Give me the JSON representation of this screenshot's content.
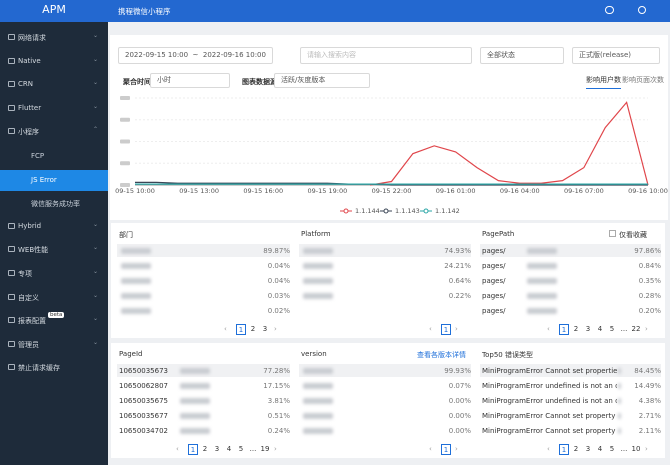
{
  "header": {
    "logo": "APM",
    "app": "携程微信小程序"
  },
  "sidebar": {
    "menu": [
      {
        "label": "网络请求"
      },
      {
        "label": "Native"
      },
      {
        "label": "CRN"
      },
      {
        "label": "Flutter"
      },
      {
        "label": "小程序",
        "children": [
          "FCP",
          "JS Error",
          "微信服务成功率"
        ]
      },
      {
        "label": "Hybrid"
      },
      {
        "label": "WEB性能"
      },
      {
        "label": "专项"
      },
      {
        "label": "自定义"
      },
      {
        "label": "报表配置",
        "badge": "beta"
      },
      {
        "label": "管理员"
      },
      {
        "label": "禁止请求缓存"
      }
    ],
    "active": "JS Error"
  },
  "filters": {
    "start": "2022-09-15 10:00",
    "sep": "~",
    "end": "2022-09-16 10:00",
    "search_placeholder": "请输入搜索内容",
    "status": "全部状态",
    "release": "正式版(release)",
    "agg_label": "聚合时间",
    "agg": "小时",
    "source_label": "图表数据源",
    "source": "活跃/灰度版本",
    "tabs": [
      "影响用户数",
      "影响页面次数"
    ]
  },
  "chart": {
    "type": "line",
    "categories": [
      "09-15 10:00",
      null,
      null,
      "09-15 13:00",
      null,
      null,
      "09-15 16:00",
      null,
      null,
      "09-15 19:00",
      null,
      null,
      "09-15 22:00",
      null,
      null,
      "09-16 01:00",
      null,
      null,
      "09-16 04:00",
      null,
      null,
      "09-16 07:00",
      null,
      null,
      "09-16 10:00"
    ],
    "ylim": [
      0,
      100
    ],
    "series": [
      {
        "name": "1.1.144",
        "color": "#e0464b",
        "values": [
          null,
          null,
          null,
          null,
          null,
          null,
          null,
          null,
          null,
          null,
          null,
          0,
          4,
          36,
          45,
          38,
          20,
          5,
          2,
          2,
          5,
          20,
          66,
          95,
          0
        ]
      },
      {
        "name": "1.1.143",
        "color": "#3b4656",
        "values": [
          3,
          3,
          2,
          2,
          2,
          2,
          2,
          2,
          2,
          2,
          1,
          1,
          0,
          0,
          0,
          0,
          0,
          0,
          0,
          0,
          0,
          0,
          0,
          0,
          0
        ]
      },
      {
        "name": "1.1.142",
        "color": "#2aa6a6",
        "values": [
          1,
          1,
          1,
          1,
          1,
          1,
          1,
          1,
          1,
          1,
          1,
          1,
          1,
          1,
          1,
          1,
          1,
          1,
          1,
          1,
          1,
          1,
          1,
          1,
          1
        ]
      }
    ]
  },
  "panels": [
    {
      "title": "部门",
      "rows": [
        {
          "value": "89.87%"
        },
        {
          "value": "0.04%"
        },
        {
          "value": "0.04%"
        },
        {
          "value": "0.03%"
        },
        {
          "value": "0.02%"
        }
      ],
      "pages": [
        "1",
        "2",
        "3"
      ]
    },
    {
      "title": "Platform",
      "rows": [
        {
          "value": "74.93%"
        },
        {
          "value": "24.21%"
        },
        {
          "value": "0.64%"
        },
        {
          "value": "0.22%"
        }
      ],
      "pages": [
        "1"
      ]
    },
    {
      "title": "PagePath",
      "extra": "仅看收藏",
      "rows": [
        {
          "label": "pages/",
          "value": "97.86%"
        },
        {
          "label": "pages/",
          "value": "0.84%"
        },
        {
          "label": "pages/",
          "value": "0.35%"
        },
        {
          "label": "pages/",
          "value": "0.28%"
        },
        {
          "label": "pages/",
          "value": "0.20%"
        }
      ],
      "pages": [
        "1",
        "2",
        "3",
        "4",
        "5",
        "...",
        "22"
      ]
    },
    {
      "title": "PageId",
      "rows": [
        {
          "label": "10650035673",
          "value": "77.28%"
        },
        {
          "label": "10650062807",
          "value": "17.15%"
        },
        {
          "label": "10650035675",
          "value": "3.81%"
        },
        {
          "label": "10650035677",
          "value": "0.51%"
        },
        {
          "label": "10650034702",
          "value": "0.24%"
        }
      ],
      "pages": [
        "1",
        "2",
        "3",
        "4",
        "5",
        "...",
        "19"
      ]
    },
    {
      "title": "version",
      "link": "查看各版本详情",
      "rows": [
        {
          "value": "99.93%"
        },
        {
          "value": "0.07%"
        },
        {
          "value": "0.00%"
        },
        {
          "value": "0.00%"
        },
        {
          "value": "0.00%"
        }
      ],
      "pages": [
        "1"
      ]
    },
    {
      "title": "Top50 错误类型",
      "rows": [
        {
          "label": "MiniProgramError Cannot set properties of un...",
          "value": "84.45%"
        },
        {
          "label": "MiniProgramError undefined is not an object (...",
          "value": "14.49%"
        },
        {
          "label": "MiniProgramError undefined is not an object (e...",
          "value": "4.38%"
        },
        {
          "label": "MiniProgramError Cannot set property 'scroll...",
          "value": "2.71%"
        },
        {
          "label": "MiniProgramError Cannot set property 'scroll...",
          "value": "2.11%"
        }
      ],
      "pages": [
        "1",
        "2",
        "3",
        "4",
        "5",
        "...",
        "10"
      ]
    }
  ]
}
